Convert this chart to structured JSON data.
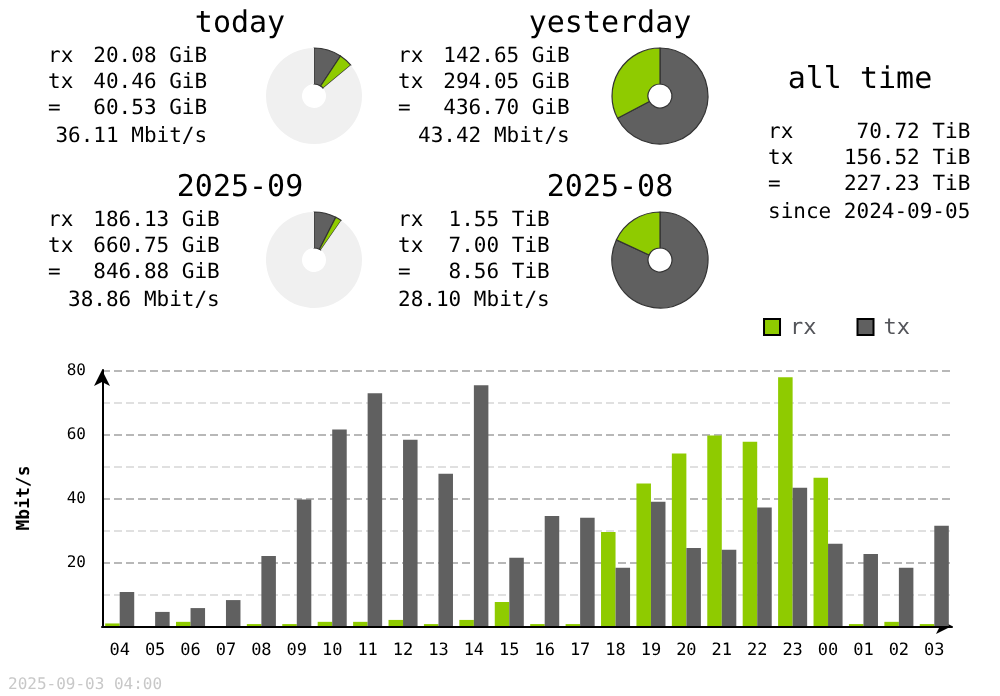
{
  "chart_data": [
    {
      "type": "donut",
      "title": "today",
      "annotations": [
        "rx",
        "20.08 GiB",
        "tx",
        "40.46 GiB",
        "=",
        "60.53 GiB",
        "36.11 Mbit/s"
      ],
      "categories": [
        null,
        null,
        null
      ],
      "values": [
        9.3,
        4.6,
        86.1
      ],
      "colors": [
        "#606060",
        "#8fcb00",
        "#f0f0f0"
      ]
    },
    {
      "type": "donut",
      "title": "yesterday",
      "annotations": [
        "rx",
        "142.65 GiB",
        "tx",
        "294.05 GiB",
        "=",
        "436.70 GiB",
        "43.42 Mbit/s"
      ],
      "categories": [
        null,
        null
      ],
      "values": [
        67.3,
        32.7
      ],
      "colors": [
        "#606060",
        "#8fcb00"
      ]
    },
    {
      "type": "donut",
      "title": "2025-09",
      "annotations": [
        "rx",
        "186.13 GiB",
        "tx",
        "660.75 GiB",
        "=",
        "846.88 GiB",
        "38.86 Mbit/s"
      ],
      "categories": [
        null,
        null,
        null
      ],
      "values": [
        7.5,
        2.1,
        90.4
      ],
      "colors": [
        "#606060",
        "#8fcb00",
        "#f0f0f0"
      ]
    },
    {
      "type": "donut",
      "title": "2025-08",
      "annotations": [
        "rx",
        "1.55 TiB",
        "tx",
        "7.00 TiB",
        "=",
        "8.56 TiB",
        "28.10 Mbit/s"
      ],
      "categories": [
        null,
        null
      ],
      "values": [
        81.9,
        18.1
      ],
      "colors": [
        "#606060",
        "#8fcb00"
      ]
    },
    {
      "type": "other",
      "title": "all time",
      "annotations": [
        "rx",
        "70.72 TiB",
        "tx",
        "156.52 TiB",
        "=",
        "227.23 TiB",
        "since 2024-09-05"
      ]
    },
    {
      "type": "bar",
      "ylabel": "Mbit/s",
      "annotations": [
        "2025-09-03 04:00"
      ],
      "categories": [
        "04",
        "05",
        "06",
        "07",
        "08",
        "09",
        "10",
        "11",
        "12",
        "13",
        "14",
        "15",
        "16",
        "17",
        "18",
        "19",
        "20",
        "21",
        "22",
        "23",
        "00",
        "01",
        "02",
        "03"
      ],
      "series": [
        {
          "name": "rx",
          "color": "#8fcb00",
          "values": [
            0.8,
            0,
            1.3,
            0,
            0.6,
            0.6,
            1.3,
            1.3,
            1.9,
            0.6,
            1.9,
            7.5,
            0.6,
            0.6,
            29.4,
            44.5,
            53.9,
            59.5,
            57.6,
            77.7,
            46.3,
            0.6,
            1.3,
            0.6
          ]
        },
        {
          "name": "tx",
          "color": "#606060",
          "values": [
            10.6,
            4.4,
            5.6,
            8.1,
            21.9,
            39.5,
            61.4,
            72.7,
            58.2,
            47.6,
            75.2,
            21.3,
            34.4,
            33.8,
            18.2,
            38.8,
            24.4,
            23.8,
            37.0,
            43.2,
            25.7,
            22.5,
            18.2,
            31.3
          ]
        }
      ],
      "ylim": [
        0,
        80
      ],
      "yticks": [
        {
          "value": 0,
          "label": null
        },
        {
          "value": 10,
          "label": null
        },
        20,
        {
          "value": 30,
          "label": null
        },
        40,
        {
          "value": 50,
          "label": null
        },
        60,
        {
          "value": 70,
          "label": null
        },
        80
      ],
      "grid": "y",
      "legend": "top right"
    }
  ]
}
